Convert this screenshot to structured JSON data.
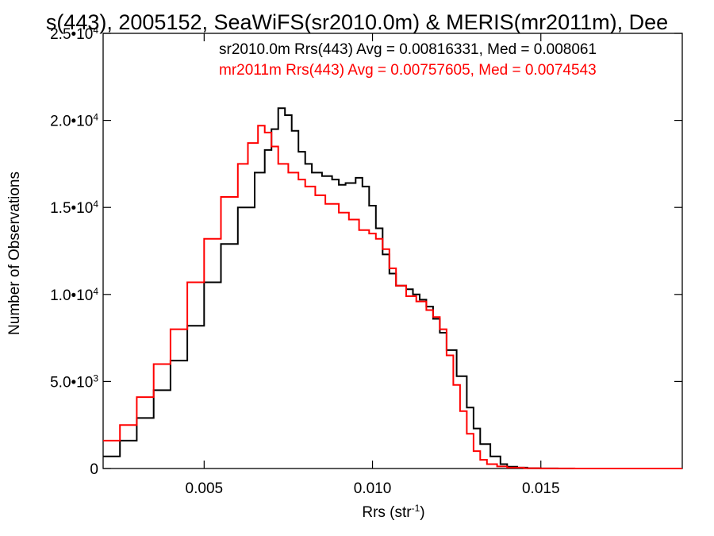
{
  "chart_data": {
    "type": "histogram",
    "title": "s(443), 2005152, SeaWiFS(sr2010.0m) & MERIS(mr2011m), Dee",
    "xlabel_main": "Rrs (str",
    "xlabel_sup": "-1",
    "xlabel_close": ")",
    "ylabel": "Number of Observations",
    "xlim": [
      0.002,
      0.0192
    ],
    "ylim": [
      0,
      25000
    ],
    "xticks": [
      {
        "value": 0.005,
        "label": "0.005"
      },
      {
        "value": 0.01,
        "label": "0.010"
      },
      {
        "value": 0.015,
        "label": "0.015"
      }
    ],
    "yticks": [
      {
        "value": 0,
        "mant": "0",
        "exp": ""
      },
      {
        "value": 5000,
        "mant": "5.0•10",
        "exp": "3"
      },
      {
        "value": 10000,
        "mant": "1.0•10",
        "exp": "4"
      },
      {
        "value": 15000,
        "mant": "1.5•10",
        "exp": "4"
      },
      {
        "value": 20000,
        "mant": "2.0•10",
        "exp": "4"
      },
      {
        "value": 25000,
        "mant": "2.5•10",
        "exp": "4"
      }
    ],
    "series": [
      {
        "name": "sr2010.0m",
        "legend": "sr2010.0m Rrs(443) Avg = 0.00816331, Med = 0.008061",
        "color": "#000000",
        "x": [
          0.002,
          0.0025,
          0.003,
          0.0035,
          0.004,
          0.0045,
          0.005,
          0.0055,
          0.006,
          0.0065,
          0.0068,
          0.007,
          0.0072,
          0.0074,
          0.0076,
          0.0078,
          0.008,
          0.0082,
          0.0085,
          0.0088,
          0.009,
          0.0092,
          0.0095,
          0.0097,
          0.0099,
          0.0101,
          0.0103,
          0.0105,
          0.0107,
          0.011,
          0.0112,
          0.0114,
          0.0116,
          0.0118,
          0.012,
          0.0122,
          0.0125,
          0.0128,
          0.013,
          0.0132,
          0.0135,
          0.0138,
          0.014,
          0.0143,
          0.0146,
          0.015,
          0.0155,
          0.016,
          0.017,
          0.018,
          0.0192
        ],
        "y": [
          700,
          1600,
          2900,
          4500,
          6200,
          8200,
          10700,
          12900,
          15000,
          17000,
          18300,
          19500,
          20700,
          20300,
          19400,
          18200,
          17500,
          17000,
          16800,
          16600,
          16300,
          16400,
          16700,
          16200,
          15100,
          13800,
          12300,
          11200,
          10500,
          10300,
          10000,
          9700,
          9300,
          8600,
          7800,
          6800,
          5300,
          3500,
          2300,
          1400,
          700,
          250,
          100,
          50,
          20,
          5,
          0,
          0,
          0,
          0,
          0
        ]
      },
      {
        "name": "mr2011m",
        "legend": "mr2011m Rrs(443) Avg = 0.00757605, Med = 0.0074543",
        "color": "#ff0000",
        "x": [
          0.002,
          0.0025,
          0.003,
          0.0035,
          0.004,
          0.0045,
          0.005,
          0.0055,
          0.006,
          0.0063,
          0.0066,
          0.0068,
          0.007,
          0.0072,
          0.0075,
          0.0078,
          0.008,
          0.0083,
          0.0086,
          0.009,
          0.0093,
          0.0096,
          0.0099,
          0.0101,
          0.0103,
          0.0105,
          0.0107,
          0.011,
          0.0113,
          0.0116,
          0.0118,
          0.012,
          0.0122,
          0.0124,
          0.0126,
          0.0128,
          0.013,
          0.0132,
          0.0134,
          0.0137,
          0.014,
          0.0145,
          0.015,
          0.016,
          0.017,
          0.018,
          0.0192
        ],
        "y": [
          1600,
          2500,
          4100,
          6000,
          8000,
          10700,
          13200,
          15600,
          17500,
          18700,
          19700,
          19300,
          18500,
          17500,
          17000,
          16600,
          16200,
          15700,
          15200,
          14700,
          14300,
          13700,
          13500,
          13200,
          12600,
          11500,
          10500,
          9900,
          9600,
          9100,
          8700,
          8000,
          6500,
          4800,
          3300,
          2000,
          1000,
          500,
          250,
          120,
          50,
          20,
          5,
          0,
          0,
          0,
          0
        ]
      }
    ],
    "grid": false,
    "legend_position": "top-right"
  }
}
